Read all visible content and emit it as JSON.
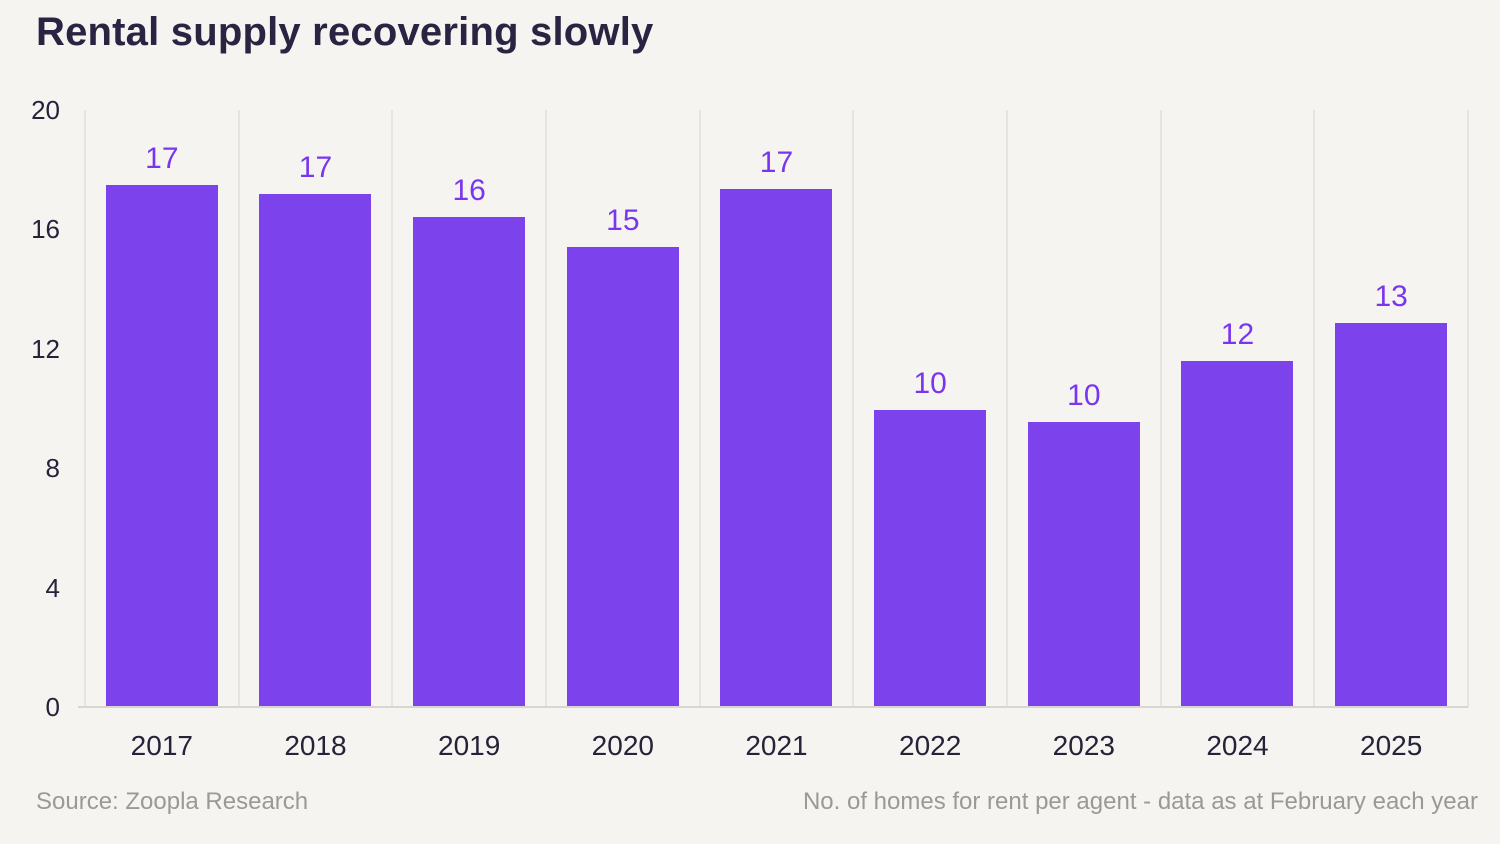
{
  "header": {
    "title": "Rental supply recovering slowly"
  },
  "footer": {
    "source": "Source: Zoopla Research",
    "note": "No. of homes for rent per agent - data as at February each year"
  },
  "colors": {
    "background": "#f5f4f1",
    "bar": "#7c43ed",
    "bar_label": "#7a36ee",
    "title_text": "#2a2342",
    "axis_text": "#262339",
    "footer_text": "#9b9996",
    "gridline": "#e6e4e1",
    "baseline": "#d9d6d2"
  },
  "chart_data": {
    "type": "bar",
    "title": "Rental supply recovering slowly",
    "categories": [
      "2017",
      "2018",
      "2019",
      "2020",
      "2021",
      "2022",
      "2023",
      "2024",
      "2025"
    ],
    "values": [
      17,
      17,
      16,
      15,
      17,
      10,
      10,
      12,
      13
    ],
    "values_precise": [
      17.5,
      17.2,
      16.4,
      15.4,
      17.35,
      9.95,
      9.55,
      11.6,
      12.85
    ],
    "xlabel": "",
    "ylabel": "",
    "y_ticks": [
      0,
      4,
      8,
      12,
      16,
      20
    ],
    "ylim": [
      0,
      20
    ],
    "grid": "vertical-only",
    "legend": "none",
    "data_labels": "above-bars",
    "source": "Source: Zoopla Research",
    "note": "No. of homes for rent per agent - data as at February each year"
  }
}
